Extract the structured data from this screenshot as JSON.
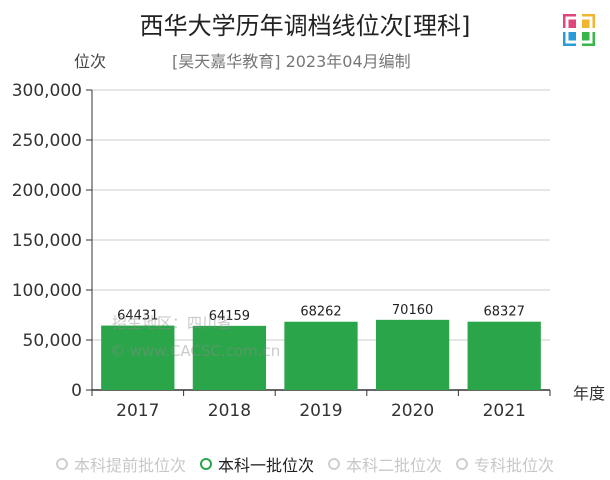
{
  "title": "西华大学历年调档线位次[理科]",
  "y_axis_title": "位次",
  "subtitle": "[昊天嘉华教育] 2023年04月编制",
  "x_axis_unit": "年度",
  "watermark": {
    "line1": "招生地区：四川省",
    "line2": "© www.CACSC.com.cn"
  },
  "logo_icon": "logo-grid-icon",
  "legend": [
    {
      "label": "本科提前批位次",
      "active": false
    },
    {
      "label": "本科一批位次",
      "active": true
    },
    {
      "label": "本科二批位次",
      "active": false
    },
    {
      "label": "专科批位次",
      "active": false
    }
  ],
  "colors": {
    "bar": "#2ba54a",
    "grid": "#cccccc",
    "axis": "#333333"
  },
  "chart_data": {
    "type": "bar",
    "categories": [
      "2017",
      "2018",
      "2019",
      "2020",
      "2021"
    ],
    "series": [
      {
        "name": "本科一批位次",
        "values": [
          64431,
          64159,
          68262,
          70160,
          68327
        ]
      }
    ],
    "ylim": [
      0,
      300000
    ],
    "yticks": [
      0,
      50000,
      100000,
      150000,
      200000,
      250000,
      300000
    ],
    "ytick_labels": [
      "0",
      "50,000",
      "100,000",
      "150,000",
      "200,000",
      "250,000",
      "300,000"
    ],
    "grid": true
  }
}
